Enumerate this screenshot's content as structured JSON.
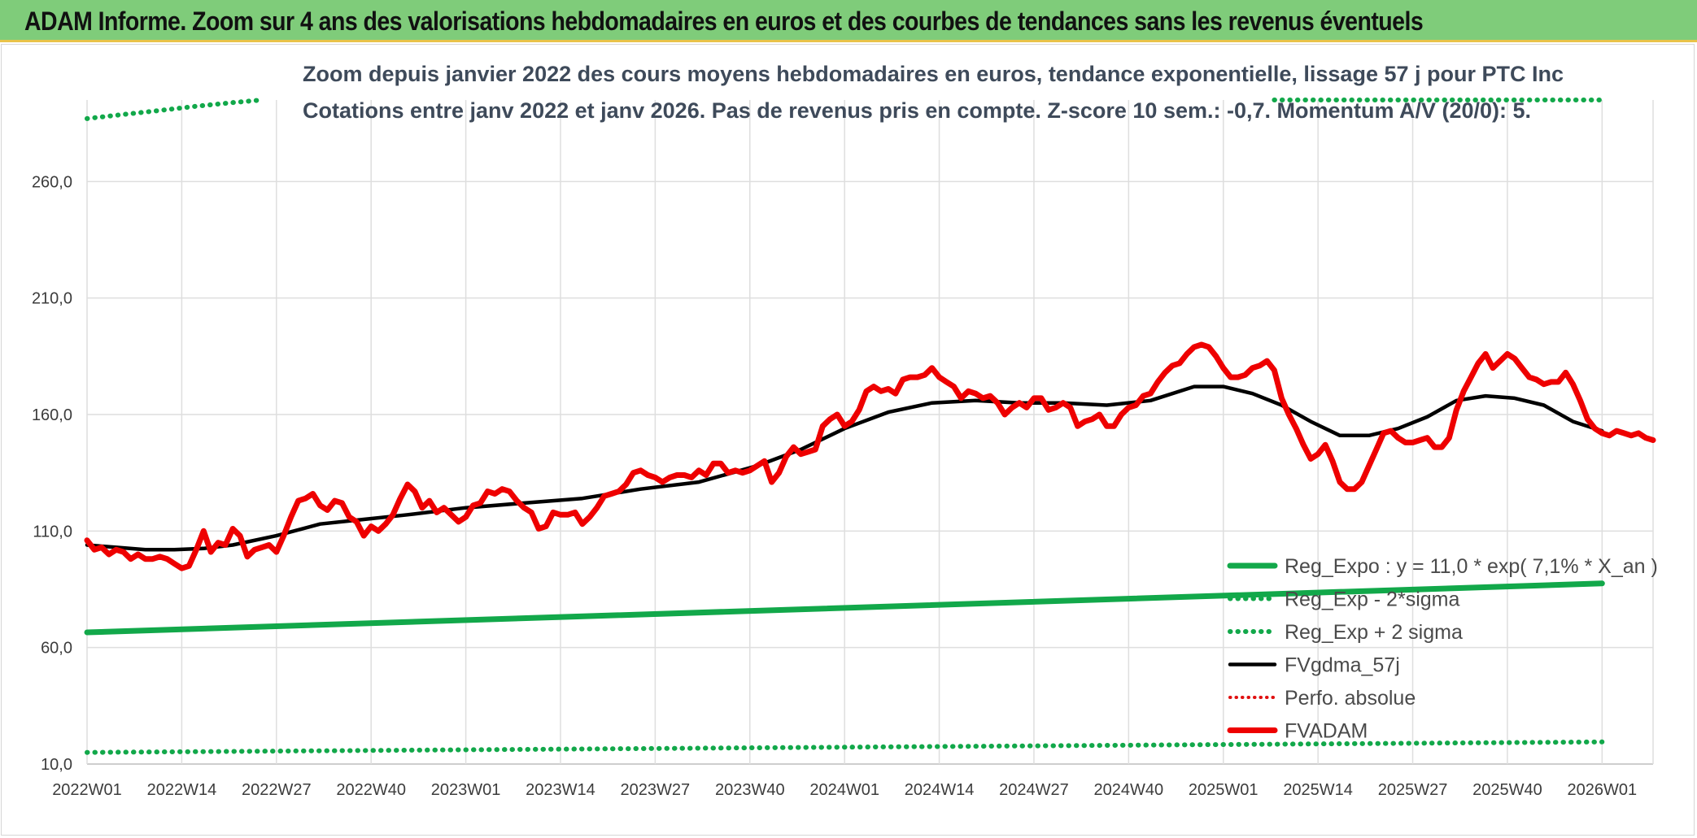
{
  "banner": {
    "title": "ADAM Informe. Zoom sur 4 ans des valorisations hebdomadaires en euros et des courbes de tendances sans les revenus éventuels"
  },
  "colors": {
    "banner_bg": "#7fcc7a",
    "reg": "#12a84a",
    "fvadam": "#ee0000",
    "fvgdma": "#000000",
    "perfo": "#e01010",
    "grid": "#dedede"
  },
  "chart_data": {
    "type": "line",
    "title": "Zoom depuis janvier 2022 des cours moyens hebdomadaires en euros, tendance exponentielle, lissage 57 j pour PTC Inc",
    "subtitle": "Cotations entre janv 2022 et janv 2026. Pas de revenus pris en compte. Z-score 10 sem.: -0,7. Momentum A/V (20/0): 5.",
    "ylim": [
      10,
      295
    ],
    "yticks": [
      "10,0",
      "60,0",
      "110,0",
      "160,0",
      "210,0",
      "260,0"
    ],
    "ytick_values": [
      10,
      60,
      110,
      160,
      210,
      260
    ],
    "week_range": [
      0,
      209
    ],
    "xticks": [
      {
        "w": 0,
        "label": "2022W01"
      },
      {
        "w": 13,
        "label": "2022W14"
      },
      {
        "w": 26,
        "label": "2022W27"
      },
      {
        "w": 39,
        "label": "2022W40"
      },
      {
        "w": 52,
        "label": "2023W01"
      },
      {
        "w": 65,
        "label": "2023W14"
      },
      {
        "w": 78,
        "label": "2023W27"
      },
      {
        "w": 91,
        "label": "2023W40"
      },
      {
        "w": 104,
        "label": "2024W01"
      },
      {
        "w": 117,
        "label": "2024W14"
      },
      {
        "w": 130,
        "label": "2024W27"
      },
      {
        "w": 143,
        "label": "2024W40"
      },
      {
        "w": 156,
        "label": "2025W01"
      },
      {
        "w": 169,
        "label": "2025W14"
      },
      {
        "w": 182,
        "label": "2025W27"
      },
      {
        "w": 195,
        "label": "2025W40"
      },
      {
        "w": 208,
        "label": "2026W01"
      }
    ],
    "series": [
      {
        "name": "Reg_Expo : y = 11,0 * exp( 7,1% *  X_an )",
        "style": "thick",
        "points": [
          [
            0,
            66.5
          ],
          [
            208,
            87.5
          ]
        ]
      },
      {
        "name": "Reg_Exp - 2*sigma",
        "style": "dots",
        "points": [
          [
            0,
            15
          ],
          [
            208,
            19.5
          ]
        ]
      },
      {
        "name": "Reg_Exp + 2 sigma",
        "style": "dots",
        "points": [
          [
            0,
            287
          ],
          [
            5,
            288.8
          ],
          [
            10,
            290.5
          ],
          [
            15,
            292.3
          ],
          [
            20,
            293.9
          ],
          [
            24,
            295
          ]
        ]
      },
      {
        "name": "FVgdma_57j",
        "style": "line",
        "points": [
          [
            0,
            104
          ],
          [
            4,
            103
          ],
          [
            8,
            102
          ],
          [
            12,
            102
          ],
          [
            16,
            102.5
          ],
          [
            20,
            104
          ],
          [
            26,
            108
          ],
          [
            32,
            113
          ],
          [
            38,
            115
          ],
          [
            44,
            117
          ],
          [
            52,
            120
          ],
          [
            60,
            122
          ],
          [
            68,
            124
          ],
          [
            76,
            128
          ],
          [
            84,
            131
          ],
          [
            92,
            138
          ],
          [
            98,
            145
          ],
          [
            104,
            154
          ],
          [
            110,
            161
          ],
          [
            116,
            165
          ],
          [
            122,
            166
          ],
          [
            128,
            165
          ],
          [
            134,
            165
          ],
          [
            140,
            164
          ],
          [
            146,
            166
          ],
          [
            152,
            172
          ],
          [
            156,
            172
          ],
          [
            160,
            169
          ],
          [
            164,
            164
          ],
          [
            168,
            157
          ],
          [
            172,
            151
          ],
          [
            176,
            151
          ],
          [
            180,
            154
          ],
          [
            184,
            159
          ],
          [
            188,
            166
          ],
          [
            192,
            168
          ],
          [
            196,
            167
          ],
          [
            200,
            164
          ],
          [
            204,
            157
          ],
          [
            208,
            153
          ]
        ]
      },
      {
        "name": "Perfo. absolue",
        "style": "dots-red",
        "points": []
      },
      {
        "name": "FVADAM",
        "style": "thick",
        "points": [
          [
            0,
            106
          ],
          [
            1,
            102
          ],
          [
            2,
            103
          ],
          [
            3,
            100
          ],
          [
            4,
            102
          ],
          [
            5,
            101
          ],
          [
            6,
            98
          ],
          [
            7,
            100
          ],
          [
            8,
            98
          ],
          [
            9,
            98
          ],
          [
            10,
            99
          ],
          [
            11,
            98
          ],
          [
            12,
            96
          ],
          [
            13,
            94
          ],
          [
            14,
            95
          ],
          [
            15,
            102
          ],
          [
            16,
            110
          ],
          [
            17,
            101
          ],
          [
            18,
            105
          ],
          [
            19,
            104
          ],
          [
            20,
            111
          ],
          [
            21,
            108
          ],
          [
            22,
            99
          ],
          [
            23,
            102
          ],
          [
            24,
            103
          ],
          [
            25,
            104
          ],
          [
            26,
            101
          ],
          [
            27,
            108
          ],
          [
            28,
            116
          ],
          [
            29,
            123
          ],
          [
            30,
            124
          ],
          [
            31,
            126
          ],
          [
            32,
            121
          ],
          [
            33,
            119
          ],
          [
            34,
            123
          ],
          [
            35,
            122
          ],
          [
            36,
            116
          ],
          [
            37,
            114
          ],
          [
            38,
            108
          ],
          [
            39,
            112
          ],
          [
            40,
            110
          ],
          [
            41,
            113
          ],
          [
            42,
            117
          ],
          [
            43,
            124
          ],
          [
            44,
            130
          ],
          [
            45,
            127
          ],
          [
            46,
            120
          ],
          [
            47,
            123
          ],
          [
            48,
            118
          ],
          [
            49,
            120
          ],
          [
            50,
            117
          ],
          [
            51,
            114
          ],
          [
            52,
            116
          ],
          [
            53,
            121
          ],
          [
            54,
            122
          ],
          [
            55,
            127
          ],
          [
            56,
            126
          ],
          [
            57,
            128
          ],
          [
            58,
            127
          ],
          [
            59,
            123
          ],
          [
            60,
            120
          ],
          [
            61,
            118
          ],
          [
            62,
            111
          ],
          [
            63,
            112
          ],
          [
            64,
            118
          ],
          [
            65,
            117
          ],
          [
            66,
            117
          ],
          [
            67,
            118
          ],
          [
            68,
            113
          ],
          [
            69,
            116
          ],
          [
            70,
            120
          ],
          [
            71,
            125
          ],
          [
            72,
            126
          ],
          [
            73,
            127
          ],
          [
            74,
            130
          ],
          [
            75,
            135
          ],
          [
            76,
            136
          ],
          [
            77,
            134
          ],
          [
            78,
            133
          ],
          [
            79,
            131
          ],
          [
            80,
            133
          ],
          [
            81,
            134
          ],
          [
            82,
            134
          ],
          [
            83,
            133
          ],
          [
            84,
            136
          ],
          [
            85,
            134
          ],
          [
            86,
            139
          ],
          [
            87,
            139
          ],
          [
            88,
            135
          ],
          [
            89,
            136
          ],
          [
            90,
            135
          ],
          [
            91,
            136
          ],
          [
            92,
            138
          ],
          [
            93,
            140
          ],
          [
            94,
            131
          ],
          [
            95,
            135
          ],
          [
            96,
            142
          ],
          [
            97,
            146
          ],
          [
            98,
            143
          ],
          [
            99,
            144
          ],
          [
            100,
            145
          ],
          [
            101,
            155
          ],
          [
            102,
            158
          ],
          [
            103,
            160
          ],
          [
            104,
            155
          ],
          [
            105,
            157
          ],
          [
            106,
            162
          ],
          [
            107,
            170
          ],
          [
            108,
            172
          ],
          [
            109,
            170
          ],
          [
            110,
            171
          ],
          [
            111,
            169
          ],
          [
            112,
            175
          ],
          [
            113,
            176
          ],
          [
            114,
            176
          ],
          [
            115,
            177
          ],
          [
            116,
            180
          ],
          [
            117,
            176
          ],
          [
            118,
            174
          ],
          [
            119,
            172
          ],
          [
            120,
            167
          ],
          [
            121,
            170
          ],
          [
            122,
            169
          ],
          [
            123,
            167
          ],
          [
            124,
            168
          ],
          [
            125,
            165
          ],
          [
            126,
            160
          ],
          [
            127,
            163
          ],
          [
            128,
            165
          ],
          [
            129,
            163
          ],
          [
            130,
            167
          ],
          [
            131,
            167
          ],
          [
            132,
            162
          ],
          [
            133,
            163
          ],
          [
            134,
            165
          ],
          [
            135,
            163
          ],
          [
            136,
            155
          ],
          [
            137,
            157
          ],
          [
            138,
            158
          ],
          [
            139,
            160
          ],
          [
            140,
            155
          ],
          [
            141,
            155
          ],
          [
            142,
            160
          ],
          [
            143,
            163
          ],
          [
            144,
            164
          ],
          [
            145,
            168
          ],
          [
            146,
            169
          ],
          [
            147,
            174
          ],
          [
            148,
            178
          ],
          [
            149,
            181
          ],
          [
            150,
            182
          ],
          [
            151,
            186
          ],
          [
            152,
            189
          ],
          [
            153,
            190
          ],
          [
            154,
            189
          ],
          [
            155,
            185
          ],
          [
            156,
            180
          ],
          [
            157,
            176
          ],
          [
            158,
            176
          ],
          [
            159,
            177
          ],
          [
            160,
            180
          ],
          [
            161,
            181
          ],
          [
            162,
            183
          ],
          [
            163,
            179
          ],
          [
            164,
            167
          ],
          [
            165,
            160
          ],
          [
            166,
            154
          ],
          [
            167,
            147
          ],
          [
            168,
            141
          ],
          [
            169,
            143
          ],
          [
            170,
            147
          ],
          [
            171,
            140
          ],
          [
            172,
            131
          ],
          [
            173,
            128
          ],
          [
            174,
            128
          ],
          [
            175,
            131
          ],
          [
            176,
            138
          ],
          [
            177,
            145
          ],
          [
            178,
            152
          ],
          [
            179,
            153
          ],
          [
            180,
            150
          ],
          [
            181,
            148
          ],
          [
            182,
            148
          ],
          [
            183,
            149
          ],
          [
            184,
            150
          ],
          [
            185,
            146
          ],
          [
            186,
            146
          ],
          [
            187,
            150
          ],
          [
            188,
            162
          ],
          [
            189,
            170
          ],
          [
            190,
            176
          ],
          [
            191,
            182
          ],
          [
            192,
            186
          ],
          [
            193,
            180
          ],
          [
            194,
            183
          ],
          [
            195,
            186
          ],
          [
            196,
            184
          ],
          [
            197,
            180
          ],
          [
            198,
            176
          ],
          [
            199,
            175
          ],
          [
            200,
            173
          ],
          [
            201,
            174
          ],
          [
            202,
            174
          ],
          [
            203,
            178
          ],
          [
            204,
            173
          ],
          [
            205,
            166
          ],
          [
            206,
            158
          ],
          [
            207,
            154
          ],
          [
            208,
            152
          ],
          [
            209,
            151
          ],
          [
            210,
            153
          ],
          [
            211,
            152
          ],
          [
            212,
            151
          ],
          [
            213,
            152
          ],
          [
            214,
            150
          ],
          [
            215,
            149
          ]
        ]
      }
    ]
  }
}
